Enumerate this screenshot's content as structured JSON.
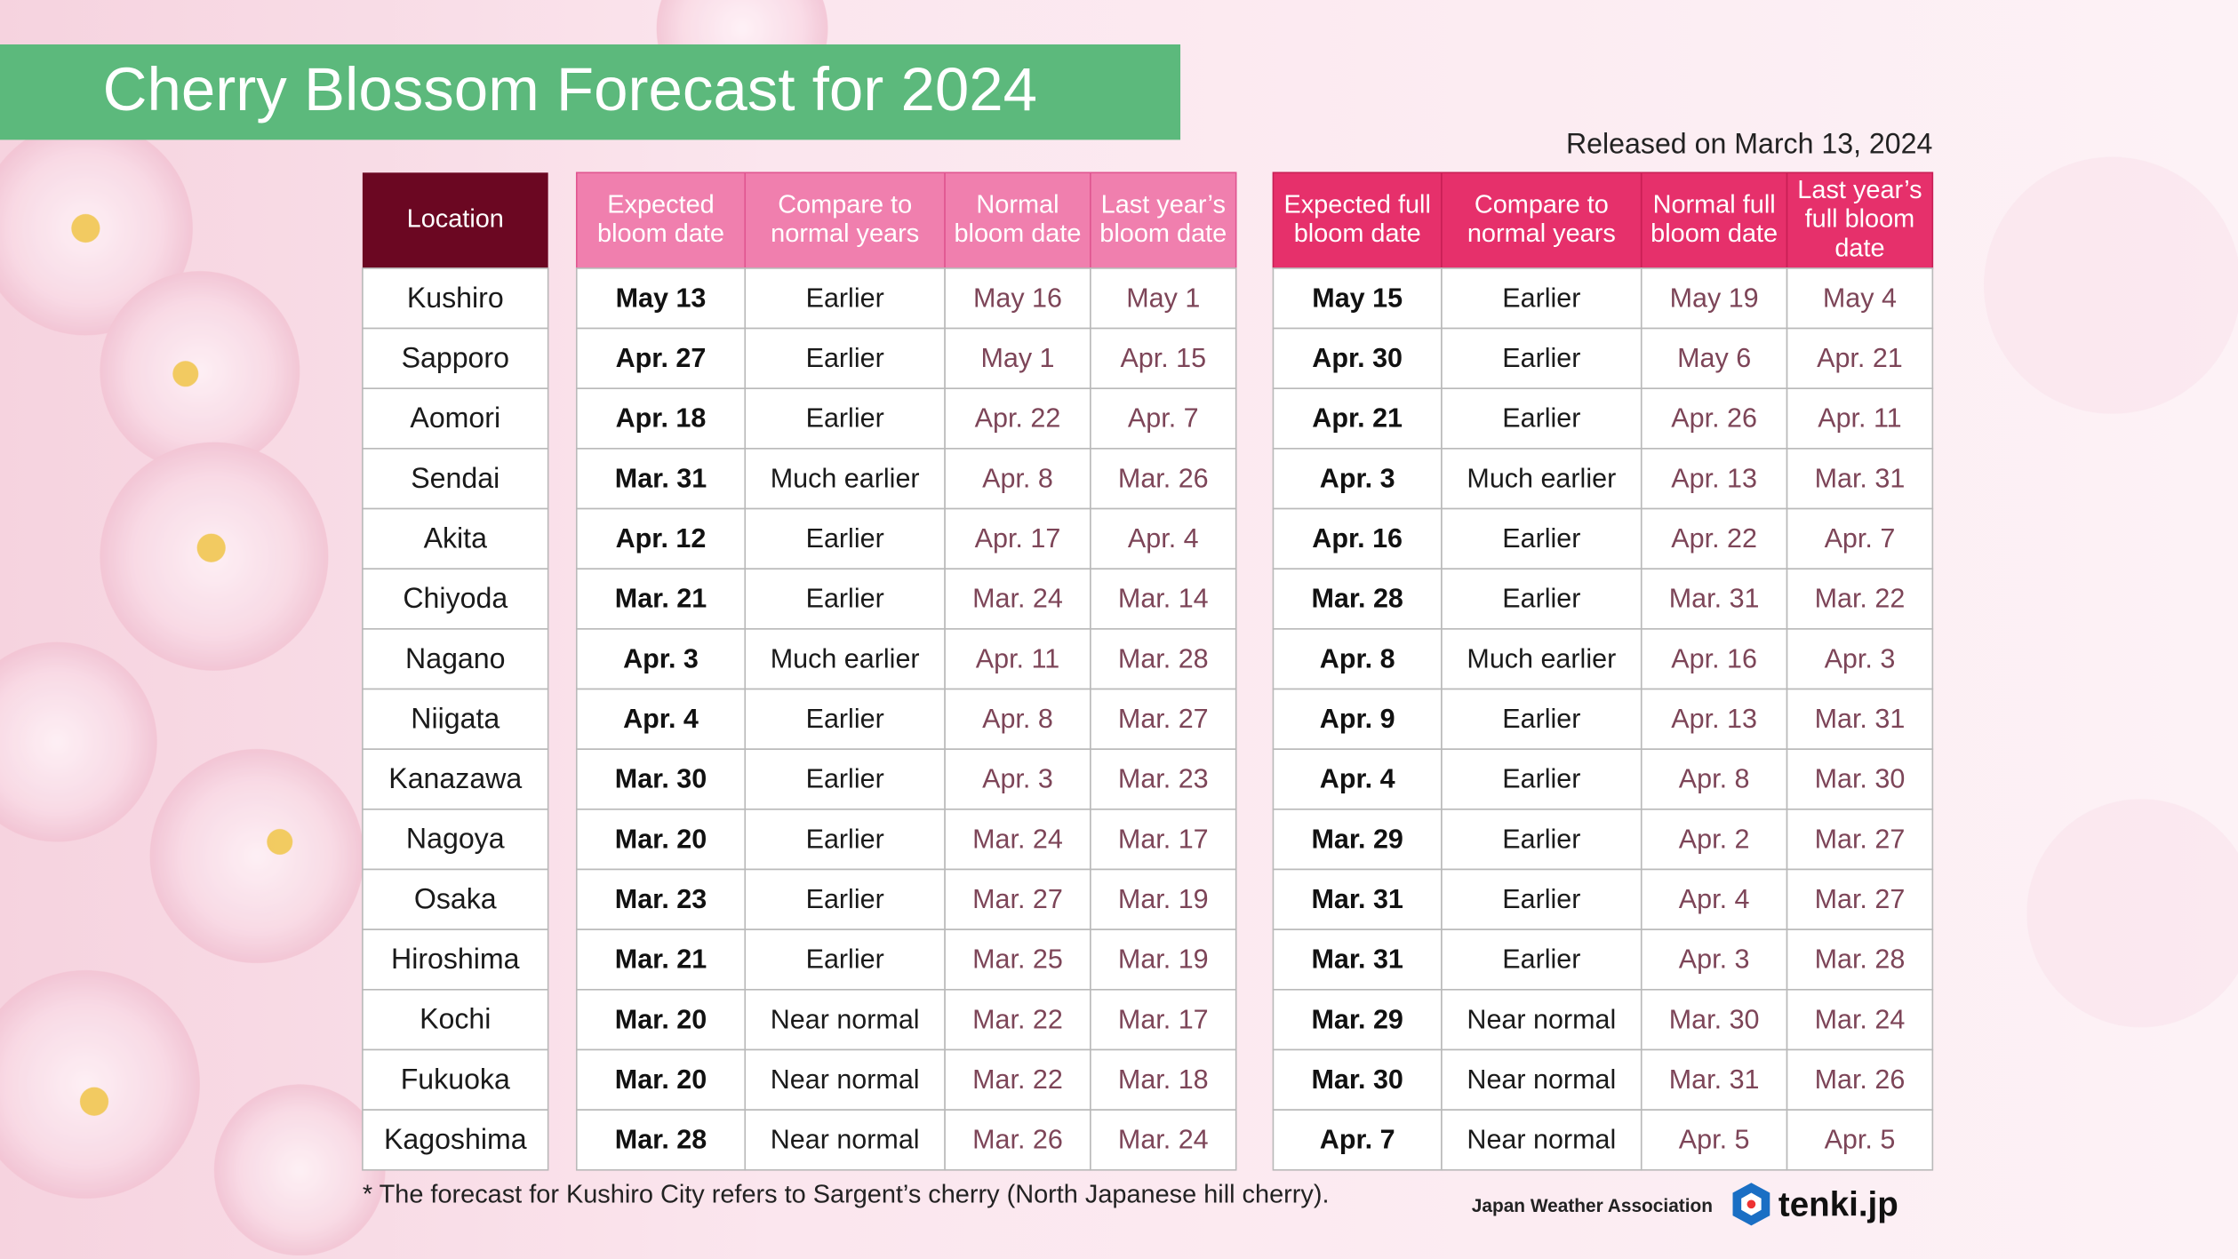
{
  "header": {
    "title": "Cherry Blossom Forecast for 2024",
    "released": "Released on March 13, 2024"
  },
  "table": {
    "location_header": "Location",
    "columns": [
      [
        "Expected",
        "bloom date"
      ],
      [
        "Compare to",
        "normal years"
      ],
      [
        "Normal",
        "bloom date"
      ],
      [
        "Last year’s",
        "bloom date"
      ],
      [
        "Expected full",
        "bloom date"
      ],
      [
        "Compare to",
        "normal years"
      ],
      [
        "Normal full",
        "bloom date"
      ],
      [
        "Last year’s",
        "full bloom",
        "date"
      ]
    ],
    "rows": [
      [
        "Kushiro",
        "May 13",
        "Earlier",
        "May 16",
        "May 1",
        "May 15",
        "Earlier",
        "May 19",
        "May 4"
      ],
      [
        "Sapporo",
        "Apr. 27",
        "Earlier",
        "May 1",
        "Apr. 15",
        "Apr. 30",
        "Earlier",
        "May 6",
        "Apr. 21"
      ],
      [
        "Aomori",
        "Apr. 18",
        "Earlier",
        "Apr. 22",
        "Apr. 7",
        "Apr. 21",
        "Earlier",
        "Apr. 26",
        "Apr. 11"
      ],
      [
        "Sendai",
        "Mar. 31",
        "Much earlier",
        "Apr. 8",
        "Mar. 26",
        "Apr. 3",
        "Much earlier",
        "Apr. 13",
        "Mar. 31"
      ],
      [
        "Akita",
        "Apr. 12",
        "Earlier",
        "Apr. 17",
        "Apr. 4",
        "Apr. 16",
        "Earlier",
        "Apr. 22",
        "Apr. 7"
      ],
      [
        "Chiyoda",
        "Mar. 21",
        "Earlier",
        "Mar. 24",
        "Mar. 14",
        "Mar. 28",
        "Earlier",
        "Mar. 31",
        "Mar. 22"
      ],
      [
        "Nagano",
        "Apr. 3",
        "Much earlier",
        "Apr. 11",
        "Mar. 28",
        "Apr. 8",
        "Much earlier",
        "Apr. 16",
        "Apr. 3"
      ],
      [
        "Niigata",
        "Apr. 4",
        "Earlier",
        "Apr. 8",
        "Mar. 27",
        "Apr. 9",
        "Earlier",
        "Apr. 13",
        "Mar. 31"
      ],
      [
        "Kanazawa",
        "Mar. 30",
        "Earlier",
        "Apr. 3",
        "Mar. 23",
        "Apr. 4",
        "Earlier",
        "Apr. 8",
        "Mar. 30"
      ],
      [
        "Nagoya",
        "Mar. 20",
        "Earlier",
        "Mar. 24",
        "Mar. 17",
        "Mar. 29",
        "Earlier",
        "Apr. 2",
        "Mar. 27"
      ],
      [
        "Osaka",
        "Mar. 23",
        "Earlier",
        "Mar. 27",
        "Mar. 19",
        "Mar. 31",
        "Earlier",
        "Apr. 4",
        "Mar. 27"
      ],
      [
        "Hiroshima",
        "Mar. 21",
        "Earlier",
        "Mar. 25",
        "Mar. 19",
        "Mar. 31",
        "Earlier",
        "Apr. 3",
        "Mar. 28"
      ],
      [
        "Kochi",
        "Mar. 20",
        "Near normal",
        "Mar. 22",
        "Mar. 17",
        "Mar. 29",
        "Near normal",
        "Mar. 30",
        "Mar. 24"
      ],
      [
        "Fukuoka",
        "Mar. 20",
        "Near normal",
        "Mar. 22",
        "Mar. 18",
        "Mar. 30",
        "Near normal",
        "Mar. 31",
        "Mar. 26"
      ],
      [
        "Kagoshima",
        "Mar. 28",
        "Near normal",
        "Mar. 26",
        "Mar. 24",
        "Apr. 7",
        "Near normal",
        "Apr. 5",
        "Apr. 5"
      ]
    ]
  },
  "footnote": "* The forecast for Kushiro City refers to Sargent’s cherry (North Japanese hill cherry).",
  "footer": {
    "organization": "Japan Weather Association",
    "brand": "tenki.jp"
  }
}
